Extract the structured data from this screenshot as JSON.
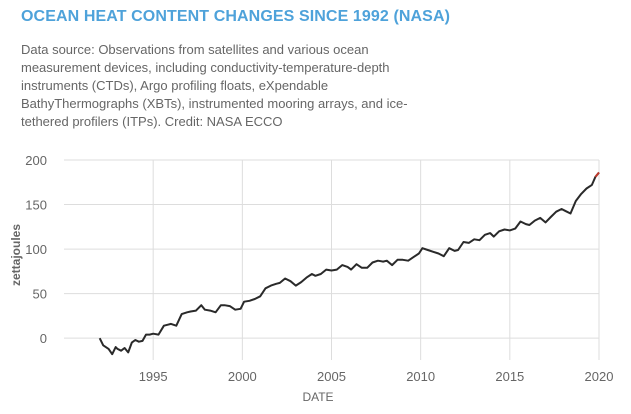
{
  "header": {
    "title": "OCEAN HEAT CONTENT CHANGES SINCE 1992 (NASA)",
    "description": "Data source: Observations from satellites and various ocean measurement devices, including conductivity-temperature-depth instruments (CTDs), Argo profiling floats, eXpendable BathyThermographs (XBTs), instrumented mooring arrays, and ice-tethered profilers (ITPs). Credit: NASA ECCO"
  },
  "colors": {
    "title": "#4ea2da",
    "line": "#2a2a2a",
    "highlight": "#c0392b",
    "grid": "#dddddd",
    "text": "#666666"
  },
  "chart_data": {
    "type": "line",
    "title": "OCEAN HEAT CONTENT CHANGES SINCE 1992 (NASA)",
    "xlabel": "DATE",
    "ylabel": "zettajoules",
    "xlim": [
      1992,
      2020
    ],
    "ylim": [
      -20,
      200
    ],
    "xticks": [
      1995,
      2000,
      2005,
      2010,
      2015,
      2020
    ],
    "xtick_labels": [
      "1995",
      "2000",
      "2005",
      "2010",
      "2015",
      "2020"
    ],
    "yticks": [
      0,
      50,
      100,
      150,
      200
    ],
    "ytick_labels": [
      "0",
      "50",
      "100",
      "150",
      "200"
    ],
    "grid": true,
    "legend": "none",
    "series": [
      {
        "x": [
          1992.0,
          1992.2,
          1992.5,
          1992.7,
          1992.9,
          1993.0,
          1993.2,
          1993.4,
          1993.6,
          1993.8,
          1994.0,
          1994.2,
          1994.4,
          1994.6,
          1994.8,
          1995.0,
          1995.3,
          1995.6,
          1995.8,
          1996.0,
          1996.3,
          1996.6,
          1996.9,
          1997.1,
          1997.4,
          1997.7,
          1997.9,
          1998.2,
          1998.5,
          1998.8,
          1999.0,
          1999.3,
          1999.6,
          1999.9,
          2000.1,
          2000.4,
          2000.7,
          2001.0,
          2001.3,
          2001.6,
          2001.9,
          2002.1,
          2002.4,
          2002.7,
          2003.0,
          2003.3,
          2003.6,
          2003.9,
          2004.1,
          2004.4,
          2004.7,
          2005.0,
          2005.3,
          2005.6,
          2005.9,
          2006.1,
          2006.4,
          2006.7,
          2007.0,
          2007.3,
          2007.6,
          2007.9,
          2008.1,
          2008.4,
          2008.7,
          2009.0,
          2009.3,
          2009.6,
          2009.9,
          2010.1,
          2010.4,
          2010.7,
          2011.0,
          2011.3,
          2011.6,
          2011.9,
          2012.1,
          2012.4,
          2012.7,
          2013.0,
          2013.3,
          2013.6,
          2013.9,
          2014.1,
          2014.4,
          2014.7,
          2015.0,
          2015.3,
          2015.6,
          2015.9,
          2016.1,
          2016.4,
          2016.7,
          2017.0,
          2017.3,
          2017.6,
          2017.9,
          2018.1,
          2018.4,
          2018.7,
          2019.0,
          2019.3,
          2019.6,
          2019.8,
          2020.0
        ],
        "y": [
          0,
          -8,
          -12,
          -18,
          -10,
          -12,
          -14,
          -11,
          -16,
          -5,
          -2,
          -4,
          -3,
          4,
          4,
          5,
          4,
          14,
          15,
          16,
          14,
          27,
          29,
          30,
          31,
          37,
          32,
          31,
          29,
          37,
          37,
          36,
          32,
          33,
          41,
          42,
          44,
          47,
          56,
          59,
          61,
          62,
          67,
          64,
          59,
          63,
          68,
          72,
          70,
          72,
          77,
          76,
          77,
          82,
          80,
          77,
          83,
          79,
          79,
          85,
          87,
          86,
          87,
          82,
          88,
          88,
          87,
          91,
          95,
          101,
          99,
          97,
          95,
          92,
          101,
          98,
          99,
          108,
          107,
          111,
          110,
          116,
          118,
          114,
          120,
          122,
          121,
          123,
          131,
          128,
          127,
          132,
          135,
          130,
          136,
          142,
          145,
          143,
          140,
          154,
          162,
          168,
          172,
          181,
          186
        ]
      }
    ]
  }
}
